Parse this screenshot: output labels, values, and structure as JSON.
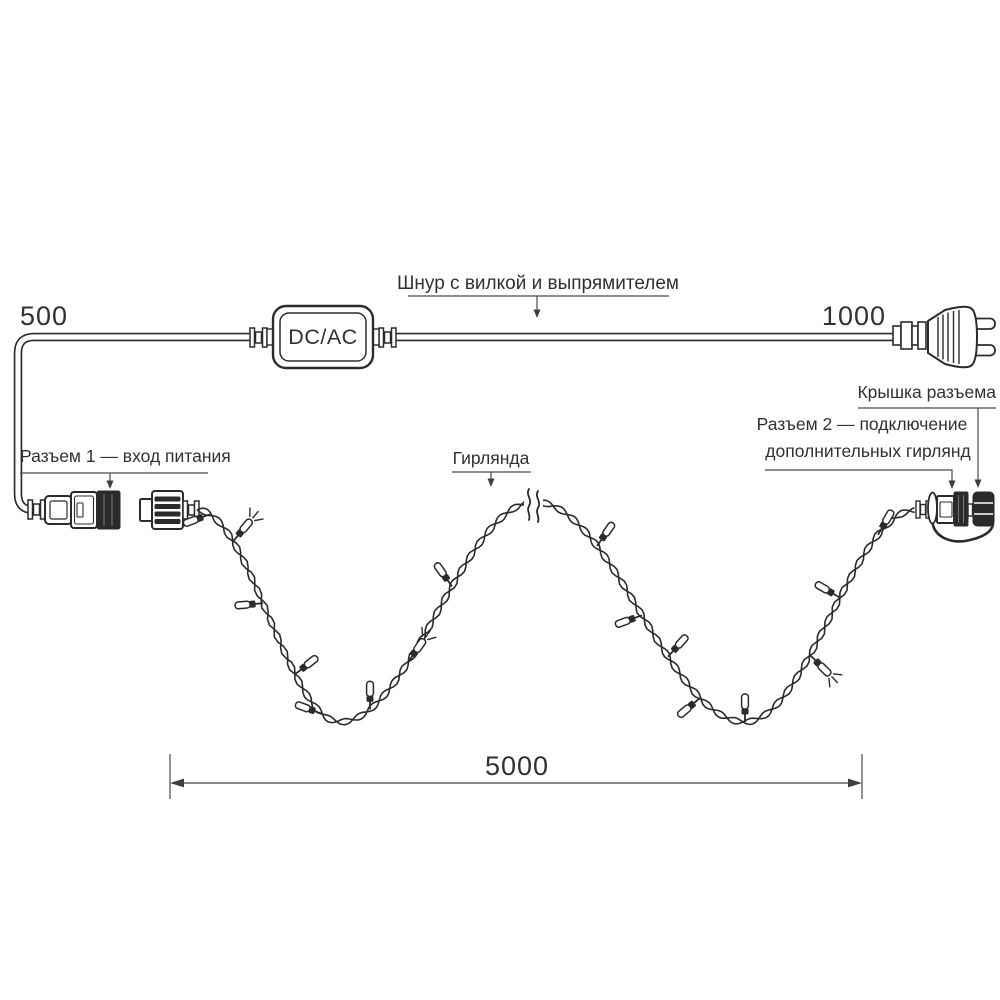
{
  "labels": {
    "cord": "Шнур с вилкой и выпрямителем",
    "connector1": "Разъем 1 — вход питания",
    "garland": "Гирлянда",
    "connector2_line1": "Разъем 2 — подключение",
    "connector2_line2": "дополнительных гирлянд",
    "cap": "Крышка разъема"
  },
  "converter": {
    "label": "DC/AC"
  },
  "dimensions": {
    "cord_left": "500",
    "cord_right": "1000",
    "garland_span": "5000"
  },
  "colors": {
    "line": "#2b2b2b",
    "label_line": "#4a4a4a",
    "background": "#ffffff"
  }
}
